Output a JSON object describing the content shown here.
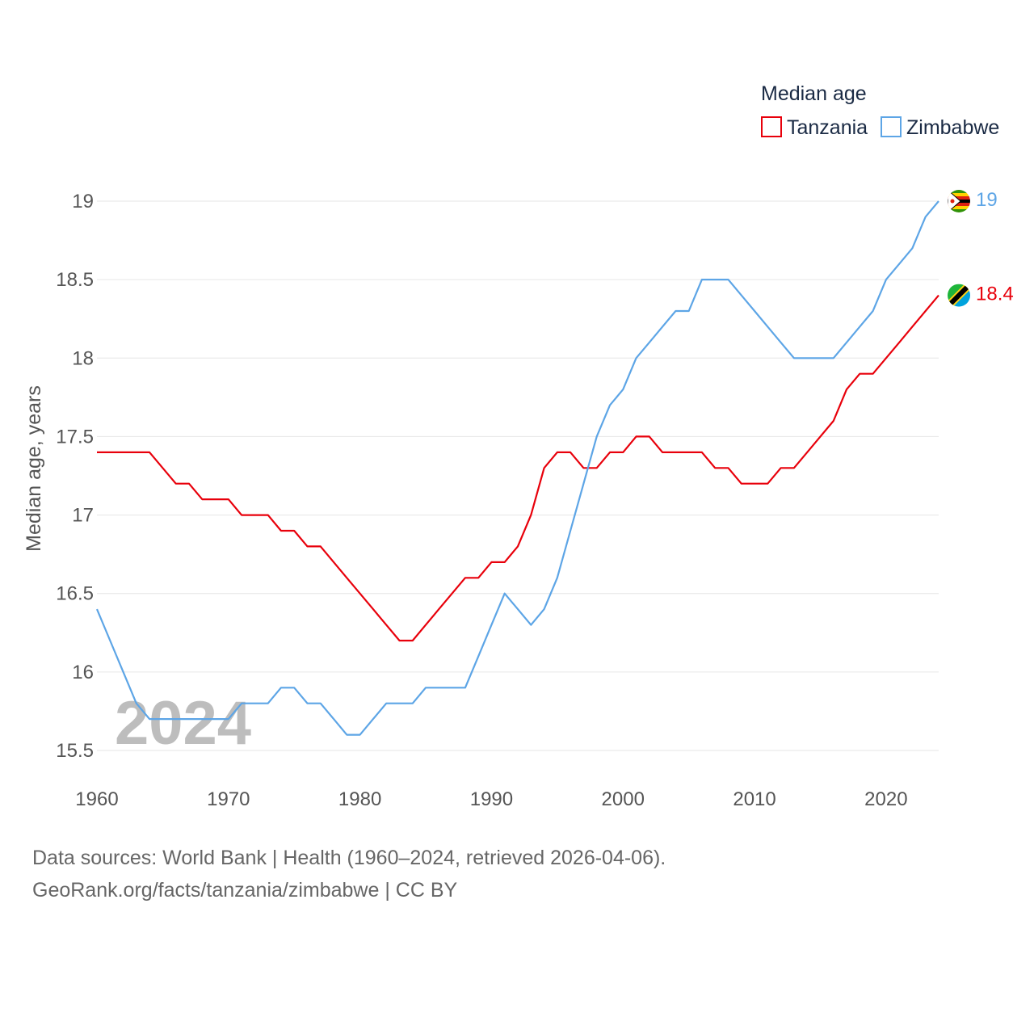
{
  "chart_data": {
    "type": "line",
    "legend_title": "Median age",
    "ylabel": "Median age, years",
    "ylim": [
      15.3,
      19.1
    ],
    "xlim": [
      1960,
      2024
    ],
    "yticks": [
      15.5,
      16,
      16.5,
      17,
      17.5,
      18,
      18.5,
      19
    ],
    "xticks": [
      1960,
      1970,
      1980,
      1990,
      2000,
      2010,
      2020
    ],
    "current_year": "2024",
    "x": [
      1960,
      1961,
      1962,
      1963,
      1964,
      1965,
      1966,
      1967,
      1968,
      1969,
      1970,
      1971,
      1972,
      1973,
      1974,
      1975,
      1976,
      1977,
      1978,
      1979,
      1980,
      1981,
      1982,
      1983,
      1984,
      1985,
      1986,
      1987,
      1988,
      1989,
      1990,
      1991,
      1992,
      1993,
      1994,
      1995,
      1996,
      1997,
      1998,
      1999,
      2000,
      2001,
      2002,
      2003,
      2004,
      2005,
      2006,
      2007,
      2008,
      2009,
      2010,
      2011,
      2012,
      2013,
      2014,
      2015,
      2016,
      2017,
      2018,
      2019,
      2020,
      2021,
      2022,
      2023,
      2024
    ],
    "series": [
      {
        "name": "Tanzania",
        "color": "#e8000b",
        "end_label": "18.4",
        "values": [
          17.4,
          17.4,
          17.4,
          17.4,
          17.4,
          17.3,
          17.2,
          17.2,
          17.1,
          17.1,
          17.1,
          17.0,
          17.0,
          17.0,
          16.9,
          16.9,
          16.8,
          16.8,
          16.7,
          16.6,
          16.5,
          16.4,
          16.3,
          16.2,
          16.2,
          16.3,
          16.4,
          16.5,
          16.6,
          16.6,
          16.7,
          16.7,
          16.8,
          17.0,
          17.3,
          17.4,
          17.4,
          17.3,
          17.3,
          17.4,
          17.4,
          17.5,
          17.5,
          17.4,
          17.4,
          17.4,
          17.4,
          17.3,
          17.3,
          17.2,
          17.2,
          17.2,
          17.3,
          17.3,
          17.4,
          17.5,
          17.6,
          17.8,
          17.9,
          17.9,
          18.0,
          18.1,
          18.2,
          18.3,
          18.4
        ]
      },
      {
        "name": "Zimbabwe",
        "color": "#5da5e6",
        "end_label": "19",
        "values": [
          16.4,
          16.2,
          16.0,
          15.8,
          15.7,
          15.7,
          15.7,
          15.7,
          15.7,
          15.7,
          15.7,
          15.8,
          15.8,
          15.8,
          15.9,
          15.9,
          15.8,
          15.8,
          15.7,
          15.6,
          15.6,
          15.7,
          15.8,
          15.8,
          15.8,
          15.9,
          15.9,
          15.9,
          15.9,
          16.1,
          16.3,
          16.5,
          16.4,
          16.3,
          16.4,
          16.6,
          16.9,
          17.2,
          17.5,
          17.7,
          17.8,
          18.0,
          18.1,
          18.2,
          18.3,
          18.3,
          18.5,
          18.5,
          18.5,
          18.4,
          18.3,
          18.2,
          18.1,
          18.0,
          18.0,
          18.0,
          18.0,
          18.1,
          18.2,
          18.3,
          18.5,
          18.6,
          18.7,
          18.9,
          19.0
        ]
      }
    ]
  },
  "footer": {
    "source_line": "Data sources: World Bank | Health (1960–2024, retrieved 2026-04-06).",
    "credit_line": "GeoRank.org/facts/tanzania/zimbabwe | CC BY"
  },
  "colors": {
    "grid": "#e6e6e6",
    "tanzania_flag_green": "#1eb53a",
    "tanzania_flag_blue": "#00a3dd",
    "tanzania_flag_yellow": "#fcd116",
    "zimbabwe_flag_green": "#319208",
    "zimbabwe_flag_yellow": "#ffd200",
    "zimbabwe_flag_red": "#de2010"
  },
  "icons": [
    "tanzania-flag-icon",
    "zimbabwe-flag-icon"
  ]
}
